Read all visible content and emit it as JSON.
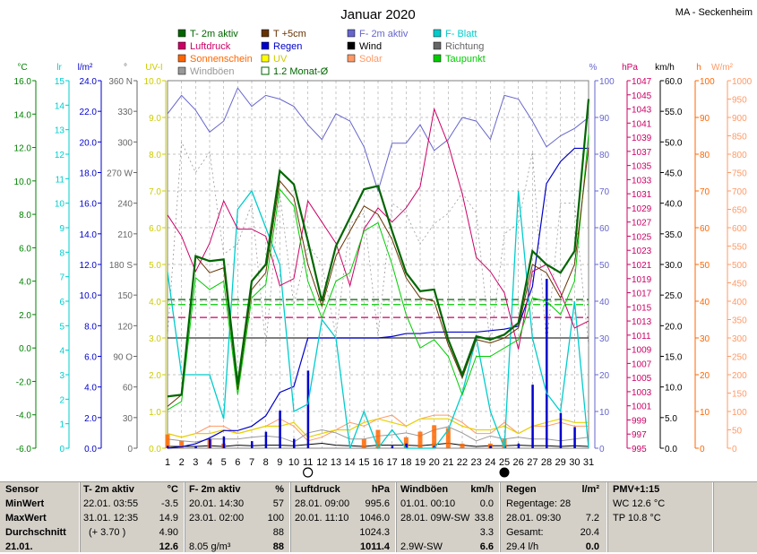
{
  "chart_data": {
    "type": "line",
    "title": "Januar 2020",
    "station": "MA - Seckenheim",
    "days": [
      1,
      2,
      3,
      4,
      5,
      6,
      7,
      8,
      9,
      10,
      11,
      12,
      13,
      14,
      15,
      16,
      17,
      18,
      19,
      20,
      21,
      22,
      23,
      24,
      25,
      26,
      27,
      28,
      29,
      30,
      31
    ],
    "legend": [
      {
        "label": "T- 2m aktiv",
        "color": "#006600",
        "key": "t2m"
      },
      {
        "label": "T +5cm",
        "color": "#663300",
        "key": "t5"
      },
      {
        "label": "F- 2m aktiv",
        "color": "#6666cc",
        "key": "f2m"
      },
      {
        "label": "F- Blatt",
        "color": "#00cccc",
        "key": "fblatt"
      },
      {
        "label": "Luftdruck",
        "color": "#cc0066",
        "key": "pressure"
      },
      {
        "label": "Regen",
        "color": "#0000cc",
        "key": "rain"
      },
      {
        "label": "Wind",
        "color": "#000000",
        "key": "wind"
      },
      {
        "label": "Richtung",
        "color": "#666666",
        "key": "dir"
      },
      {
        "label": "Sonnenschein",
        "color": "#ff6600",
        "key": "sun"
      },
      {
        "label": "UV",
        "color": "#ffff00",
        "key": "uv"
      },
      {
        "label": "Solar",
        "color": "#ff9966",
        "key": "solar"
      },
      {
        "label": "Taupunkt",
        "color": "#00cc00",
        "key": "dew"
      },
      {
        "label": "Windböen",
        "color": "#999999",
        "key": "gust"
      },
      {
        "label": "1.2 Monat-Ø",
        "color": "#006600",
        "key": "avg"
      }
    ],
    "axes": {
      "temp": {
        "unit": "°C",
        "ticks": [
          "16.0",
          "14.0",
          "12.0",
          "10.0",
          "8.0",
          "6.0",
          "4.0",
          "2.0",
          "0.0",
          "-2.0",
          "-4.0",
          "-6.0"
        ],
        "range": [
          -6,
          16
        ]
      },
      "lr": {
        "unit": "lr",
        "ticks": [
          "15",
          "14",
          "13",
          "12",
          "11",
          "10",
          "9",
          "8",
          "7",
          "6",
          "5",
          "4",
          "3",
          "2",
          "1",
          "0"
        ]
      },
      "rain": {
        "unit": "l/m²",
        "ticks": [
          "24.0",
          "22.0",
          "20.0",
          "18.0",
          "16.0",
          "14.0",
          "12.0",
          "10.0",
          "8.0",
          "6.0",
          "4.0",
          "2.0",
          "0.0"
        ],
        "range": [
          0,
          25
        ]
      },
      "dir": {
        "unit": "°",
        "ticks": [
          "360 N",
          "330",
          "300",
          "270 W",
          "240",
          "210",
          "180 S",
          "150",
          "120",
          "90 O",
          "60",
          "30",
          "0"
        ]
      },
      "uv": {
        "unit": "UV-I",
        "ticks": [
          "10.0",
          "9.0",
          "8.0",
          "7.0",
          "6.0",
          "5.0",
          "4.0",
          "3.0",
          "2.0",
          "1.0",
          "0.0"
        ]
      },
      "hum": {
        "unit": "%",
        "ticks": [
          "100",
          "90",
          "80",
          "70",
          "60",
          "50",
          "40",
          "30",
          "20",
          "10",
          "0"
        ]
      },
      "pressure": {
        "unit": "hPa",
        "ticks": [
          "1047",
          "1045",
          "1043",
          "1041",
          "1039",
          "1037",
          "1035",
          "1033",
          "1031",
          "1029",
          "1027",
          "1025",
          "1023",
          "1021",
          "1019",
          "1017",
          "1015",
          "1013",
          "1011",
          "1009",
          "1007",
          "1005",
          "1003",
          "1001",
          "999",
          "997",
          "995"
        ],
        "range": [
          995,
          1047
        ]
      },
      "wind": {
        "unit": "km/h",
        "ticks": [
          "60.0",
          "55.0",
          "50.0",
          "45.0",
          "40.0",
          "35.0",
          "30.0",
          "25.0",
          "20.0",
          "15.0",
          "10.0",
          "5.0",
          "0.0"
        ]
      },
      "sunh": {
        "unit": "h",
        "ticks": [
          "100",
          "90",
          "80",
          "70",
          "60",
          "50",
          "40",
          "30",
          "20",
          "10",
          "0"
        ]
      },
      "solar": {
        "unit": "W/m²",
        "ticks": [
          "1000",
          "950",
          "900",
          "850",
          "800",
          "750",
          "700",
          "650",
          "600",
          "550",
          "500",
          "450",
          "400",
          "350",
          "300",
          "250",
          "200",
          "150",
          "100",
          "50",
          "0"
        ]
      }
    },
    "series": {
      "t2m": [
        -2.9,
        -2.8,
        5.5,
        5.2,
        5.3,
        -2.2,
        4.0,
        5.0,
        10.6,
        9.8,
        6.4,
        2.8,
        6.1,
        7.8,
        9.5,
        9.7,
        7.0,
        4.5,
        3.4,
        3.5,
        0.5,
        -1.6,
        0.7,
        0.5,
        0.8,
        1.5,
        5.8,
        5.0,
        4.5,
        5.8,
        14.9
      ],
      "t5": [
        -3.5,
        -2.8,
        5.5,
        4.5,
        4.8,
        -2.5,
        3.5,
        4.5,
        10.0,
        9.0,
        5.0,
        2.5,
        5.5,
        7.0,
        8.5,
        8.0,
        6.5,
        4.2,
        3.0,
        2.8,
        0.2,
        -1.8,
        0.5,
        0.3,
        0.6,
        1.2,
        5.0,
        4.5,
        3.0,
        5.0,
        12.0
      ],
      "dew": [
        -3.7,
        -3.2,
        4.2,
        3.5,
        4.0,
        -2.8,
        3.0,
        3.8,
        9.5,
        8.5,
        4.0,
        1.8,
        4.0,
        4.5,
        7.0,
        7.5,
        5.0,
        2.0,
        0.0,
        0.5,
        -0.5,
        -2.8,
        -0.5,
        -0.5,
        0.0,
        0.5,
        3.0,
        2.8,
        2.0,
        4.0,
        12.8
      ],
      "f2m": [
        91,
        96,
        92,
        86,
        89,
        98,
        93,
        96,
        95,
        93,
        88,
        84,
        91,
        89,
        82,
        70,
        83,
        83,
        88,
        81,
        84,
        90,
        89,
        84,
        96,
        95,
        89,
        82,
        85,
        87,
        90
      ],
      "fblatt": [
        48,
        20,
        20,
        20,
        8,
        65,
        70,
        60,
        50,
        10,
        12,
        35,
        30,
        0,
        10,
        0,
        5,
        0,
        0,
        0,
        5,
        15,
        30,
        10,
        0,
        70,
        30,
        15,
        10,
        40,
        0
      ],
      "pressure": [
        1028,
        1025,
        1020,
        1024,
        1030,
        1026,
        1026,
        1025,
        1018,
        1019,
        1030,
        1027,
        1024,
        1018,
        1026,
        1029,
        1027,
        1029,
        1032,
        1043,
        1038,
        1031,
        1022,
        1020,
        1017,
        1009,
        1020,
        1021,
        1017,
        1012,
        1013
      ],
      "rain_cum": [
        0,
        0.1,
        0.3,
        0.7,
        1.2,
        1.2,
        1.5,
        2.2,
        3.8,
        4.2,
        7.5,
        7.5,
        7.5,
        7.5,
        7.5,
        7.5,
        7.6,
        7.8,
        7.8,
        7.9,
        7.9,
        7.9,
        7.9,
        8.0,
        8.1,
        8.3,
        11.0,
        18.0,
        19.5,
        20.4,
        20.4
      ],
      "rain_daily": [
        0.1,
        0,
        0.1,
        0.4,
        0.5,
        0,
        0.3,
        0.7,
        1.6,
        0.4,
        3.3,
        0,
        0,
        0,
        0,
        0,
        0.1,
        0.2,
        0,
        0.1,
        0,
        0,
        0,
        0.1,
        0.1,
        0.2,
        2.7,
        7.2,
        1.5,
        0.9,
        0
      ],
      "sun_hours": [
        1.5,
        0.8,
        0,
        1.0,
        0.5,
        0,
        0,
        0,
        0,
        0,
        0,
        0,
        0,
        0,
        1.0,
        2.0,
        0,
        1.2,
        1.8,
        2.5,
        2.2,
        0.5,
        0,
        0.5,
        1.0,
        0,
        0,
        0,
        0,
        0,
        0
      ],
      "solar": [
        40,
        30,
        40,
        60,
        60,
        40,
        50,
        60,
        80,
        60,
        20,
        30,
        50,
        70,
        60,
        80,
        90,
        60,
        80,
        90,
        90,
        70,
        40,
        40,
        70,
        40,
        60,
        60,
        70,
        60,
        60
      ],
      "uv": [
        0.4,
        0.3,
        0.4,
        0.4,
        0.5,
        0.4,
        0.5,
        0.6,
        0.6,
        0.7,
        0.3,
        0.4,
        0.5,
        0.5,
        0.7,
        0.8,
        0.7,
        0.6,
        0.8,
        0.8,
        0.8,
        0.6,
        0.5,
        0.5,
        0.6,
        0.4,
        0.6,
        0.7,
        0.8,
        0.7,
        0.7
      ],
      "gust": [
        1.5,
        1.2,
        1.0,
        1.5,
        1.5,
        1.5,
        1.8,
        2.0,
        1.8,
        1.0,
        2.5,
        3.0,
        2.5,
        1.5,
        1.5,
        2.0,
        2.2,
        2.5,
        2.0,
        3.0,
        3.5,
        2.5,
        1.2,
        2.0,
        1.5,
        1.8,
        1.5,
        1.5,
        1.2,
        1.5,
        1.8
      ],
      "wind_avg": [
        0.3,
        0.3,
        0.3,
        0.4,
        0.3,
        0.5,
        0.4,
        0.5,
        0.5,
        0.4,
        0.6,
        0.8,
        0.5,
        0.4,
        0.3,
        0.5,
        0.5,
        0.5,
        0.4,
        0.6,
        0.8,
        0.5,
        0.3,
        0.4,
        0.4,
        0.5,
        0.4,
        0.4,
        0.3,
        0.4,
        0.3
      ],
      "dir": [
        110,
        300,
        270,
        290,
        190,
        200,
        240,
        100,
        250,
        140,
        200,
        180,
        110,
        220,
        230,
        110,
        240,
        230,
        200,
        220,
        230,
        250,
        230,
        100,
        210,
        220,
        290,
        100,
        240,
        240,
        100
      ]
    },
    "reference_lines": [
      {
        "label": "avg-temp",
        "color": "#006600",
        "value": 2.9
      },
      {
        "label": "avg-pressure",
        "color": "#cc0066",
        "value": 1013.5
      },
      {
        "label": "avg-wind",
        "color": "#333333",
        "value": 18.0
      },
      {
        "label": "avg-dew",
        "color": "#00cc00",
        "value": 2.6
      }
    ],
    "moon": {
      "full_day": 11,
      "new_day": 25
    }
  },
  "stats": {
    "sensor": {
      "header": "Sensor",
      "rows": [
        "MinWert",
        "MaxWert",
        "Durchschnitt",
        "21.01."
      ]
    },
    "t2m": {
      "header": "T- 2m aktiv",
      "unit": "°C",
      "rows": [
        [
          "22.01.  03:55",
          "-3.5"
        ],
        [
          "31.01.  12:35",
          "14.9"
        ],
        [
          "(+ 3.70 )",
          "4.90"
        ],
        [
          "",
          "12.6"
        ]
      ]
    },
    "f2m": {
      "header": "F- 2m aktiv",
      "unit": "%",
      "rows": [
        [
          "20.01.  14:30",
          "57"
        ],
        [
          "23.01.  02:00",
          "100"
        ],
        [
          "",
          "88"
        ],
        [
          "8.05  g/m³",
          "88"
        ]
      ]
    },
    "pressure": {
      "header": "Luftdruck",
      "unit": "hPa",
      "rows": [
        [
          "28.01.  09:00",
          "995.6"
        ],
        [
          "20.01.  11:10",
          "1046.0"
        ],
        [
          "",
          "1024.3"
        ],
        [
          "",
          "1011.4"
        ]
      ]
    },
    "gusts": {
      "header": "Windböen",
      "unit": "km/h",
      "rows": [
        [
          "01.01.  00:10",
          "0.0"
        ],
        [
          "28.01.  09W-SW",
          "33.8"
        ],
        [
          "",
          "3.3"
        ],
        [
          "2.9W-SW",
          "6.6"
        ]
      ]
    },
    "rain": {
      "header": "Regen",
      "unit": "l/m²",
      "rows": [
        [
          "Regentage: 28",
          ""
        ],
        [
          "28.01.  09:30",
          "7.2"
        ],
        [
          "Gesamt:",
          "20.4"
        ],
        [
          "29.4 l/h",
          "0.0"
        ]
      ]
    },
    "pmv": {
      "header": "PMV+1:15",
      "rows": [
        "WC 12.6 °C",
        "TP 10.8 °C"
      ]
    }
  }
}
